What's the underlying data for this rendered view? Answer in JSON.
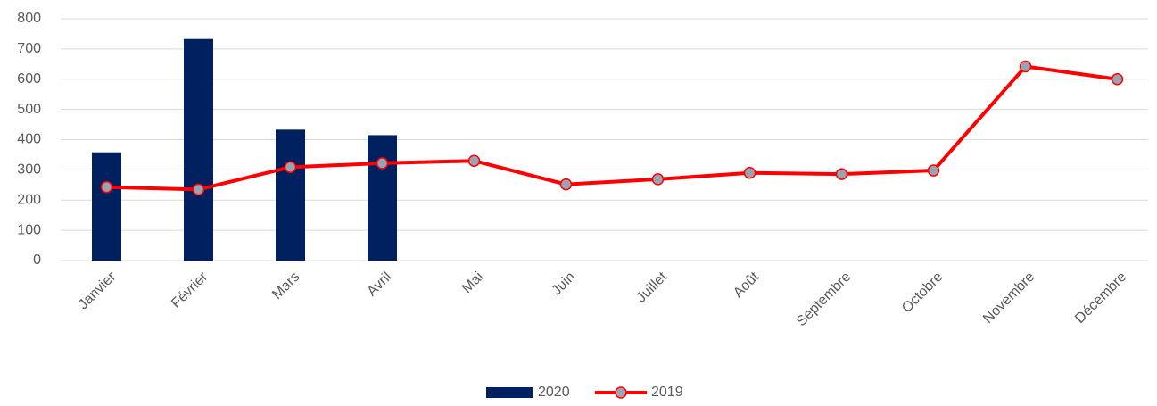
{
  "chart_data": {
    "type": "combo",
    "categories": [
      "Janvier",
      "Février",
      "Mars",
      "Avril",
      "Mai",
      "Juin",
      "Juillet",
      "Août",
      "Septembre",
      "Octobre",
      "Novembre",
      "Décembre"
    ],
    "series": [
      {
        "name": "2020",
        "type": "bar",
        "color": "#002060",
        "values": [
          358,
          733,
          433,
          415,
          null,
          null,
          null,
          null,
          null,
          null,
          null,
          null
        ]
      },
      {
        "name": "2019",
        "type": "line",
        "color": "#ff0000",
        "marker_color": "#9aa3b2",
        "values": [
          243,
          235,
          309,
          322,
          330,
          252,
          269,
          290,
          286,
          298,
          642,
          600
        ]
      }
    ],
    "ylim": [
      0,
      800
    ],
    "yticks": [
      0,
      100,
      200,
      300,
      400,
      500,
      600,
      700,
      800
    ],
    "grid": true,
    "legend": "bottom"
  }
}
